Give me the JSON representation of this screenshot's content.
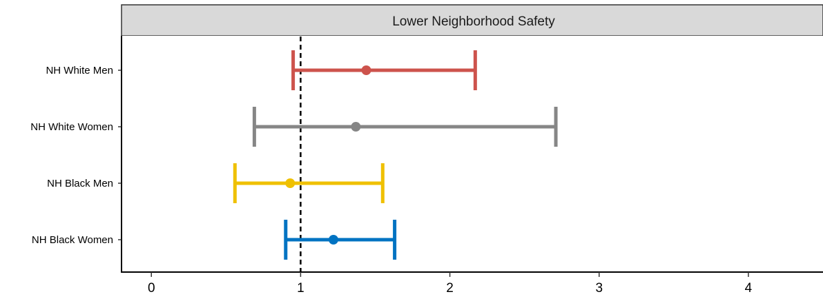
{
  "chart_data": {
    "type": "scatter",
    "subtype": "forest-plot",
    "title": "",
    "panel_title": "Lower Neighborhood Safety",
    "xlabel": "",
    "ylabel": "",
    "xlim": [
      -0.2,
      4.5
    ],
    "x_ticks": [
      0,
      1,
      2,
      3,
      4
    ],
    "x_tick_labels": [
      "0",
      "1",
      "2",
      "3",
      "4"
    ],
    "reference_line": 1,
    "reference_line_style": "dashed",
    "grid": false,
    "legend": "none",
    "categories": [
      "NH White Men",
      "NH White Women",
      "NH Black Men",
      "NH Black Women"
    ],
    "estimates": [
      1.44,
      1.37,
      0.93,
      1.22
    ],
    "ci_lower": [
      0.95,
      0.69,
      0.56,
      0.9
    ],
    "ci_upper": [
      2.17,
      2.71,
      1.55,
      1.63
    ],
    "colors": [
      "#CD534C",
      "#868686",
      "#EFC000",
      "#0073C2"
    ]
  }
}
